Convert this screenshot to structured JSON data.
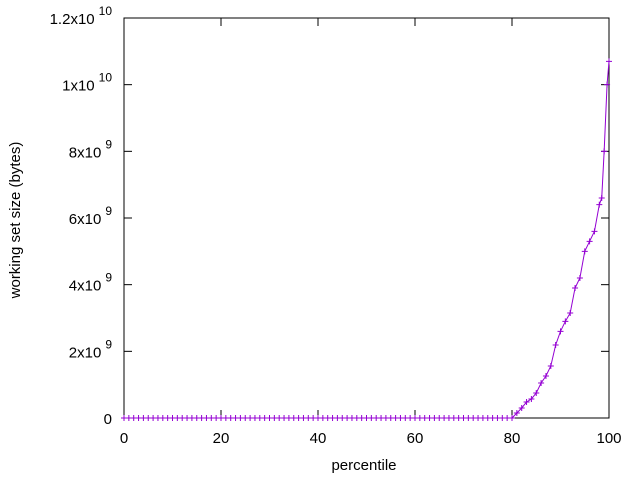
{
  "chart_data": {
    "type": "line",
    "xlabel": "percentile",
    "ylabel": "working set size (bytes)",
    "x": [
      0,
      1,
      2,
      3,
      4,
      5,
      6,
      7,
      8,
      9,
      10,
      11,
      12,
      13,
      14,
      15,
      16,
      17,
      18,
      19,
      20,
      21,
      22,
      23,
      24,
      25,
      26,
      27,
      28,
      29,
      30,
      31,
      32,
      33,
      34,
      35,
      36,
      37,
      38,
      39,
      40,
      41,
      42,
      43,
      44,
      45,
      46,
      47,
      48,
      49,
      50,
      51,
      52,
      53,
      54,
      55,
      56,
      57,
      58,
      59,
      60,
      61,
      62,
      63,
      64,
      65,
      66,
      67,
      68,
      69,
      70,
      71,
      72,
      73,
      74,
      75,
      76,
      77,
      78,
      79,
      80,
      81,
      82,
      83,
      84,
      85,
      86,
      87,
      88,
      89,
      90,
      91,
      92,
      93,
      94,
      95,
      96,
      97,
      98,
      98.5,
      99,
      99.6,
      100
    ],
    "series": [
      {
        "color": "#9400d3",
        "marker": "+",
        "values": [
          0,
          0,
          0,
          0,
          0,
          0,
          0,
          0,
          0,
          0,
          0,
          0,
          0,
          0,
          0,
          0,
          0,
          0,
          0,
          0,
          0,
          0,
          0,
          0,
          0,
          0,
          0,
          0,
          0,
          0,
          0,
          0,
          0,
          0,
          0,
          0,
          0,
          0,
          0,
          0,
          0,
          0,
          0,
          0,
          0,
          0,
          0,
          0,
          0,
          0,
          0,
          0,
          0,
          0,
          0,
          0,
          0,
          0,
          0,
          0,
          0,
          0,
          0,
          0,
          0,
          0,
          0,
          0,
          0,
          0,
          0,
          0,
          0,
          0,
          0,
          0,
          0,
          0,
          0,
          0,
          0,
          150000000,
          300000000,
          480000000,
          570000000,
          750000000,
          1050000000,
          1260000000,
          1560000000,
          2190000000,
          2600000000,
          2900000000,
          3150000000,
          3900000000,
          4200000000,
          5000000000,
          5300000000,
          5600000000,
          6400000000,
          6600000000,
          8000000000,
          10000000000,
          10700000000
        ]
      }
    ],
    "xlim": [
      0,
      100
    ],
    "xticks": [
      0,
      20,
      40,
      60,
      80,
      100
    ],
    "ylim": [
      0,
      12000000000
    ],
    "yticks": [
      0,
      {
        "value": 2000000000,
        "label": "2x10^9"
      },
      {
        "value": 4000000000,
        "label": "4x10^9"
      },
      {
        "value": 6000000000,
        "label": "6x10^9"
      },
      {
        "value": 8000000000,
        "label": "8x10^9"
      },
      {
        "value": 10000000000,
        "label": "1x10^10"
      },
      {
        "value": 12000000000,
        "label": "1.2x10^10"
      }
    ],
    "grid": false
  }
}
